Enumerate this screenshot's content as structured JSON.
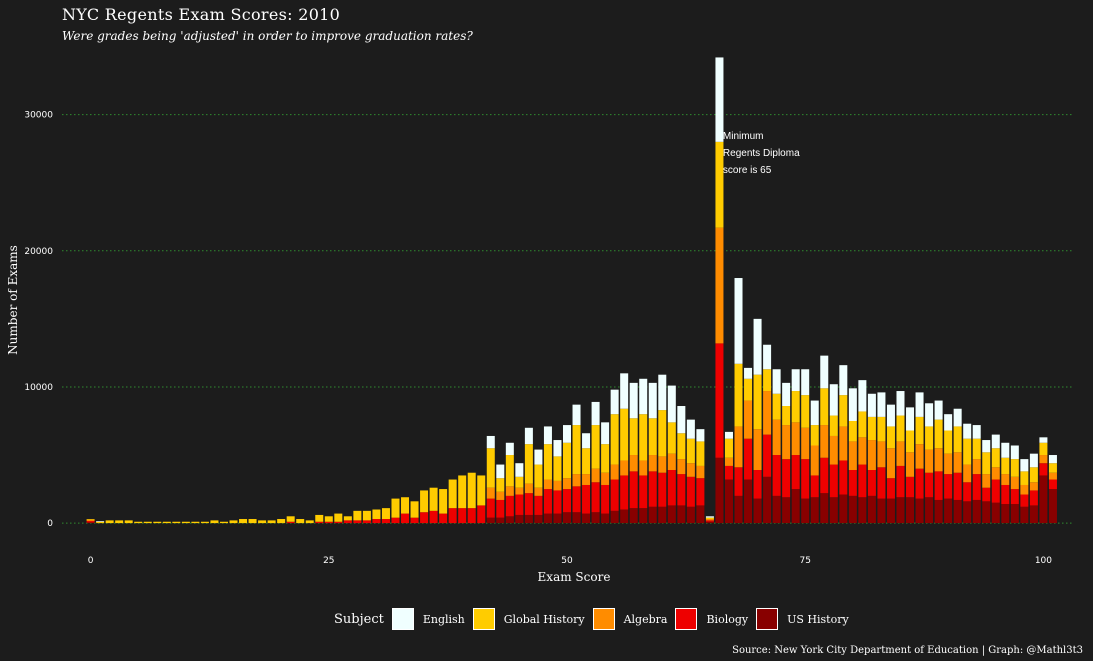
{
  "chart_data": {
    "type": "bar",
    "stacked": true,
    "title": "NYC Regents Exam Scores: 2010",
    "subtitle": "Were grades being 'adjusted' in order to improve graduation rates?",
    "xlabel": "Exam Score",
    "ylabel": "Number of Exams",
    "xlim": [
      -3,
      103
    ],
    "ylim": [
      -800,
      34600
    ],
    "x_ticks": [
      0,
      25,
      50,
      75,
      100
    ],
    "y_ticks": [
      0,
      10000,
      20000,
      30000
    ],
    "y_tick_labels": [
      "0",
      "10000",
      "20000",
      "30000"
    ],
    "x_tick_labels": [
      "0",
      "25",
      "50",
      "75",
      "100"
    ],
    "grid": "horizontal dotted",
    "legend_position": "bottom",
    "legend_title": "Subject",
    "annotation": {
      "x": 65,
      "y": 29000,
      "lines": [
        "Minimum",
        "Regents Diploma",
        "score is 65"
      ]
    },
    "source": "Source: New York City Department of Education | Graph: @Mathl3t3",
    "series_order": [
      "US History",
      "Biology",
      "Algebra",
      "Global History",
      "English"
    ],
    "series": [
      {
        "name": "English",
        "color": "#f0ffff",
        "values": [
          0,
          50,
          0,
          0,
          0,
          0,
          0,
          0,
          0,
          0,
          0,
          0,
          0,
          0,
          0,
          0,
          0,
          0,
          0,
          0,
          0,
          0,
          0,
          0,
          0,
          0,
          0,
          0,
          0,
          0,
          0,
          0,
          0,
          0,
          0,
          0,
          0,
          0,
          0,
          0,
          0,
          0,
          900,
          1000,
          900,
          1000,
          1200,
          1100,
          1300,
          1200,
          1300,
          1500,
          1100,
          1700,
          1600,
          1800,
          2600,
          2600,
          2600,
          2600,
          2600,
          2700,
          2000,
          1400,
          900,
          100,
          6200,
          500,
          6300,
          800,
          4100,
          1800,
          1800,
          1700,
          1600,
          1900,
          1800,
          2400,
          2300,
          2200,
          2400,
          2300,
          1700,
          1800,
          1600,
          1800,
          1700,
          1800,
          1700,
          1400,
          1200,
          1300,
          1100,
          1000,
          900,
          1000,
          1100,
          1000,
          900,
          1000,
          400,
          600
        ]
      },
      {
        "name": "Global History",
        "color": "#ffcc00",
        "values": [
          50,
          100,
          200,
          200,
          200,
          100,
          100,
          100,
          100,
          100,
          100,
          100,
          100,
          200,
          100,
          200,
          300,
          300,
          200,
          200,
          300,
          400,
          300,
          200,
          500,
          400,
          600,
          300,
          700,
          700,
          700,
          800,
          1400,
          1200,
          1200,
          1600,
          1700,
          1800,
          2100,
          2400,
          2600,
          2200,
          2900,
          1000,
          2300,
          800,
          2900,
          1700,
          2600,
          1800,
          2600,
          3600,
          1900,
          3200,
          2100,
          3700,
          3800,
          2700,
          3400,
          2700,
          3400,
          2300,
          1900,
          1800,
          1800,
          100,
          6300,
          1400,
          4600,
          1600,
          4000,
          1600,
          1900,
          1400,
          2300,
          2400,
          1500,
          2700,
          1500,
          2300,
          1500,
          1900,
          1700,
          1800,
          1600,
          1900,
          1600,
          2000,
          1700,
          2100,
          1700,
          1900,
          1900,
          1500,
          1600,
          1400,
          1200,
          1300,
          1000,
          1100,
          900,
          700,
          500
        ]
      },
      {
        "name": "Algebra",
        "color": "#ff8c00",
        "values": [
          100,
          0,
          0,
          0,
          0,
          0,
          0,
          0,
          0,
          0,
          0,
          0,
          0,
          0,
          0,
          0,
          0,
          0,
          0,
          0,
          0,
          0,
          0,
          0,
          0,
          0,
          0,
          0,
          0,
          0,
          0,
          0,
          0,
          0,
          0,
          0,
          0,
          0,
          0,
          0,
          0,
          0,
          800,
          600,
          700,
          500,
          700,
          600,
          700,
          700,
          800,
          900,
          800,
          1000,
          900,
          1100,
          1100,
          1200,
          1100,
          1200,
          1200,
          1200,
          1100,
          1000,
          900,
          100,
          8500,
          600,
          3000,
          2800,
          3000,
          3200,
          2600,
          2500,
          2400,
          2300,
          2200,
          2400,
          2100,
          2500,
          2100,
          2000,
          2200,
          1900,
          2200,
          1800,
          1800,
          1800,
          1700,
          1700,
          1500,
          1500,
          1300,
          1100,
          1000,
          900,
          800,
          900,
          700,
          600,
          600,
          500,
          500
        ]
      },
      {
        "name": "Biology",
        "color": "#ee0000",
        "values": [
          100,
          0,
          0,
          0,
          0,
          0,
          0,
          0,
          0,
          0,
          0,
          0,
          0,
          0,
          0,
          0,
          0,
          0,
          0,
          0,
          0,
          100,
          0,
          0,
          100,
          100,
          100,
          200,
          200,
          200,
          300,
          300,
          400,
          700,
          400,
          800,
          900,
          700,
          1100,
          1100,
          1100,
          1300,
          1400,
          1300,
          1500,
          1500,
          1600,
          1400,
          1800,
          1700,
          1700,
          1900,
          2100,
          2200,
          2100,
          2300,
          2500,
          2700,
          2400,
          2600,
          2500,
          2600,
          2300,
          2200,
          2000,
          100,
          8400,
          1000,
          2100,
          3000,
          2100,
          3100,
          3000,
          2800,
          2500,
          2900,
          1600,
          2600,
          2400,
          2500,
          1900,
          2400,
          1900,
          2300,
          1500,
          2300,
          1500,
          2200,
          1800,
          2100,
          1800,
          2000,
          1400,
          1900,
          1000,
          1700,
          1400,
          1100,
          900,
          1100,
          900,
          700,
          400
        ]
      },
      {
        "name": "US History",
        "color": "#880000",
        "values": [
          50,
          0,
          0,
          0,
          0,
          0,
          0,
          0,
          0,
          0,
          0,
          0,
          0,
          0,
          0,
          0,
          0,
          0,
          0,
          0,
          0,
          0,
          0,
          0,
          0,
          0,
          0,
          0,
          0,
          0,
          0,
          0,
          0,
          0,
          0,
          0,
          0,
          0,
          0,
          0,
          0,
          0,
          400,
          400,
          500,
          600,
          600,
          600,
          700,
          700,
          800,
          800,
          700,
          800,
          700,
          900,
          1000,
          1100,
          1100,
          1200,
          1200,
          1300,
          1300,
          1200,
          1300,
          100,
          4800,
          3200,
          2000,
          3200,
          1800,
          3400,
          2000,
          1900,
          2500,
          1800,
          1900,
          2200,
          1900,
          2100,
          2000,
          1900,
          2000,
          1800,
          1800,
          1900,
          1900,
          1800,
          1900,
          1700,
          1800,
          1700,
          1600,
          1700,
          1600,
          1500,
          1400,
          1400,
          1200,
          1300,
          3500,
          2500,
          2000
        ]
      }
    ]
  }
}
